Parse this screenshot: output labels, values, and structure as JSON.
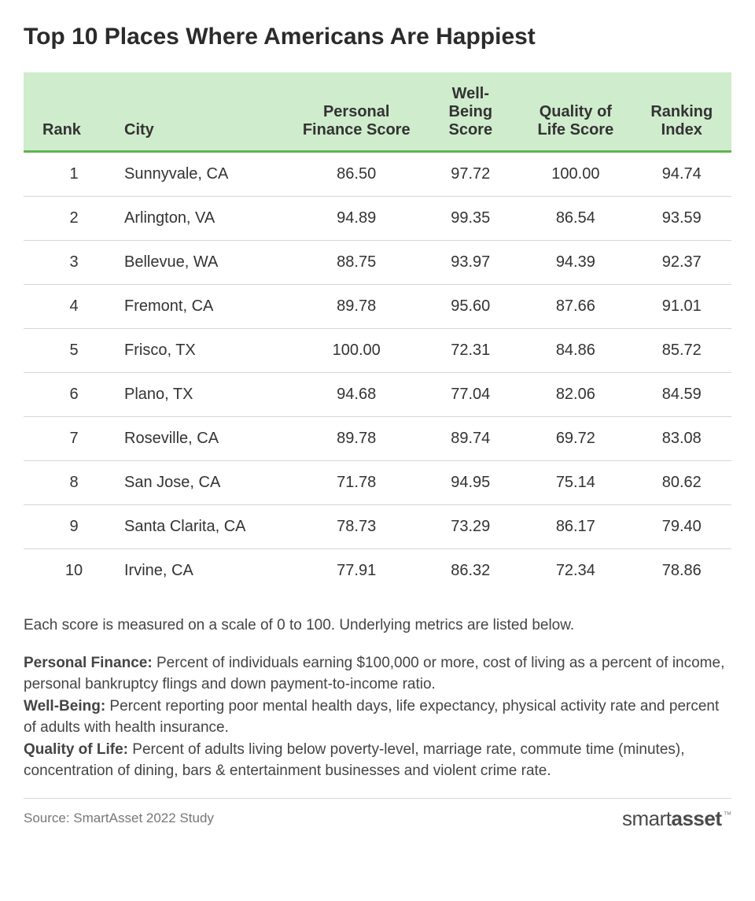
{
  "title": "Top 10 Places Where Americans Are Happiest",
  "table": {
    "type": "table",
    "header_bg": "#cfeccc",
    "header_border_color": "#5fb551",
    "row_border_color": "#d7d7d7",
    "font_size": 20,
    "columns": [
      {
        "key": "rank",
        "label": "Rank",
        "align": "left"
      },
      {
        "key": "city",
        "label": "City",
        "align": "left"
      },
      {
        "key": "pf",
        "label": "Personal Finance Score",
        "align": "center"
      },
      {
        "key": "wb",
        "label": "Well-Being Score",
        "align": "center"
      },
      {
        "key": "qol",
        "label": "Quality of Life Score",
        "align": "center"
      },
      {
        "key": "idx",
        "label": "Ranking Index",
        "align": "center"
      }
    ],
    "rows": [
      {
        "rank": "1",
        "city": "Sunnyvale, CA",
        "pf": "86.50",
        "wb": "97.72",
        "qol": "100.00",
        "idx": "94.74"
      },
      {
        "rank": "2",
        "city": "Arlington, VA",
        "pf": "94.89",
        "wb": "99.35",
        "qol": "86.54",
        "idx": "93.59"
      },
      {
        "rank": "3",
        "city": "Bellevue, WA",
        "pf": "88.75",
        "wb": "93.97",
        "qol": "94.39",
        "idx": "92.37"
      },
      {
        "rank": "4",
        "city": "Fremont, CA",
        "pf": "89.78",
        "wb": "95.60",
        "qol": "87.66",
        "idx": "91.01"
      },
      {
        "rank": "5",
        "city": "Frisco, TX",
        "pf": "100.00",
        "wb": "72.31",
        "qol": "84.86",
        "idx": "85.72"
      },
      {
        "rank": "6",
        "city": "Plano, TX",
        "pf": "94.68",
        "wb": "77.04",
        "qol": "82.06",
        "idx": "84.59"
      },
      {
        "rank": "7",
        "city": "Roseville, CA",
        "pf": "89.78",
        "wb": "89.74",
        "qol": "69.72",
        "idx": "83.08"
      },
      {
        "rank": "8",
        "city": "San Jose, CA",
        "pf": "71.78",
        "wb": "94.95",
        "qol": "75.14",
        "idx": "80.62"
      },
      {
        "rank": "9",
        "city": "Santa Clarita, CA",
        "pf": "78.73",
        "wb": "73.29",
        "qol": "86.17",
        "idx": "79.40"
      },
      {
        "rank": "10",
        "city": "Irvine, CA",
        "pf": "77.91",
        "wb": "86.32",
        "qol": "72.34",
        "idx": "78.86"
      }
    ]
  },
  "notes": {
    "scale_note": "Each score is measured on a scale of 0 to 100. Underlying metrics are listed below.",
    "defs": [
      {
        "label": "Personal Finance:",
        "text": " Percent of individuals earning $100,000 or more, cost of living as a percent of income, personal bankruptcy flings and down payment-to-income ratio."
      },
      {
        "label": "Well-Being:",
        "text": " Percent reporting poor mental health days, life expectancy, physical activity rate and percent of adults with health insurance."
      },
      {
        "label": "Quality of Life:",
        "text": " Percent of adults living below poverty-level, marriage rate, commute time (minutes), concentration of dining, bars & entertainment businesses and violent crime rate."
      }
    ]
  },
  "footer": {
    "source": "Source: SmartAsset 2022 Study",
    "logo_smart": "smart",
    "logo_asset": "asset",
    "logo_tm": "™"
  }
}
